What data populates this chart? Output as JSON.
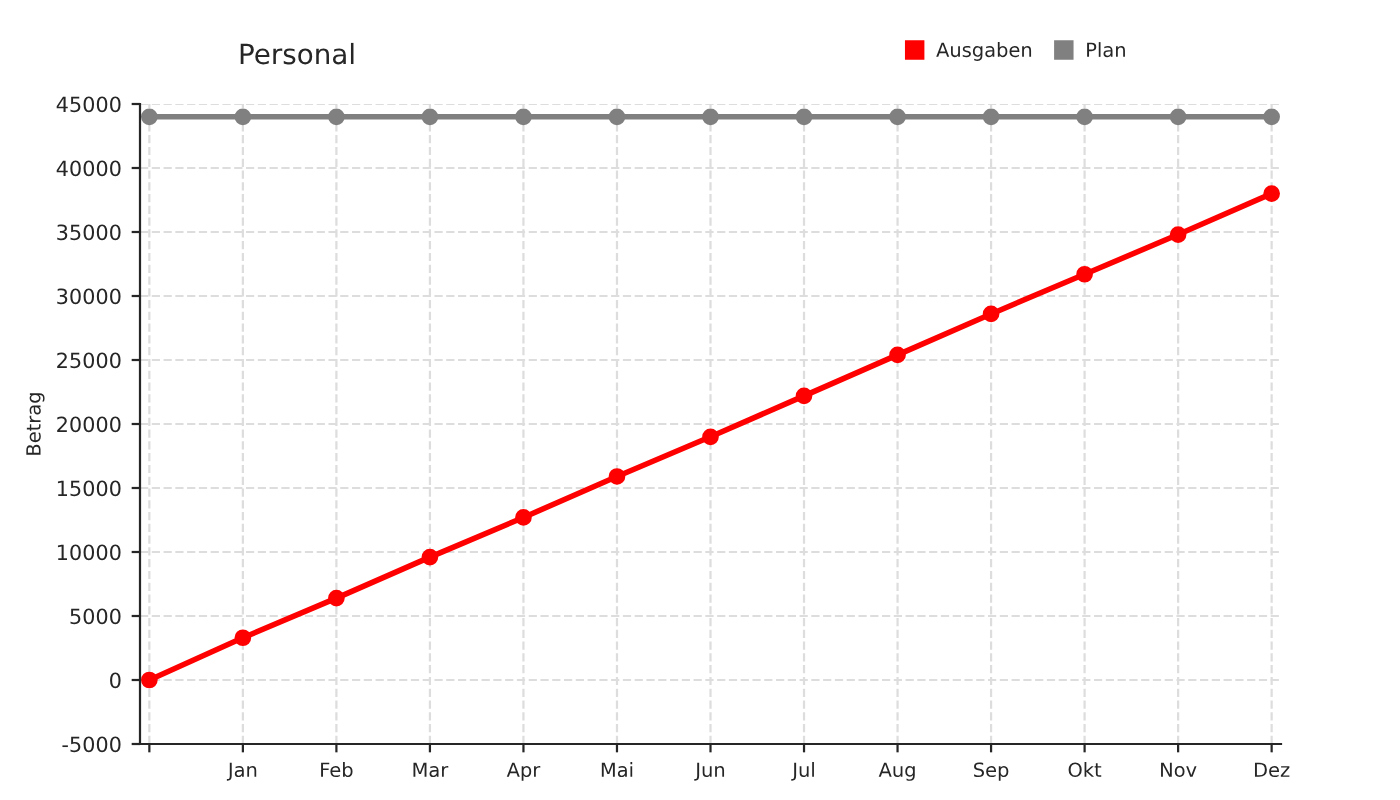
{
  "chart_data": {
    "type": "line",
    "title": "Personal",
    "ylabel": "Betrag",
    "categories": [
      null,
      "Jan",
      "Feb",
      "Mar",
      "Apr",
      "Mai",
      "Jun",
      "Jul",
      "Aug",
      "Sep",
      "Okt",
      "Nov",
      "Dez"
    ],
    "series": [
      {
        "name": "Ausgaben",
        "color": "#ff0000",
        "values": [
          0,
          3300,
          6400,
          9600,
          12700,
          15900,
          19000,
          22200,
          25400,
          28600,
          31700,
          34800,
          38000
        ]
      },
      {
        "name": "Plan",
        "color": "#808080",
        "values": [
          44000,
          44000,
          44000,
          44000,
          44000,
          44000,
          44000,
          44000,
          44000,
          44000,
          44000,
          44000,
          44000
        ]
      }
    ],
    "ylim": [
      -5000,
      45000
    ],
    "yticks": [
      -5000,
      0,
      5000,
      10000,
      15000,
      20000,
      25000,
      30000,
      35000,
      40000,
      45000
    ],
    "grid": true,
    "legend": "top right",
    "marker": "circle",
    "line_style": "solid"
  }
}
